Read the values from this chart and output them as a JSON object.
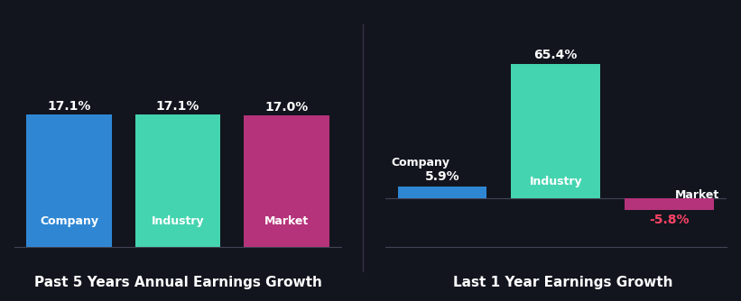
{
  "background_color": "#12151e",
  "left_chart": {
    "title": "Past 5 Years Annual Earnings Growth",
    "categories": [
      "Company",
      "Industry",
      "Market"
    ],
    "values": [
      17.1,
      17.1,
      17.0
    ],
    "colors": [
      "#2f87d4",
      "#45d4b0",
      "#b5337a"
    ],
    "value_labels": [
      "17.1%",
      "17.1%",
      "17.0%"
    ]
  },
  "right_chart": {
    "title": "Last 1 Year Earnings Growth",
    "categories": [
      "Company",
      "Industry",
      "Market"
    ],
    "values": [
      5.9,
      65.4,
      -5.8
    ],
    "colors": [
      "#2f87d4",
      "#45d4b0",
      "#b5337a"
    ],
    "value_labels": [
      "5.9%",
      "65.4%",
      "-5.8%"
    ],
    "negative_label_color": "#ff4466"
  },
  "text_color": "#ffffff",
  "title_color": "#ffffff",
  "label_fontsize": 9,
  "value_fontsize": 10,
  "title_fontsize": 11
}
